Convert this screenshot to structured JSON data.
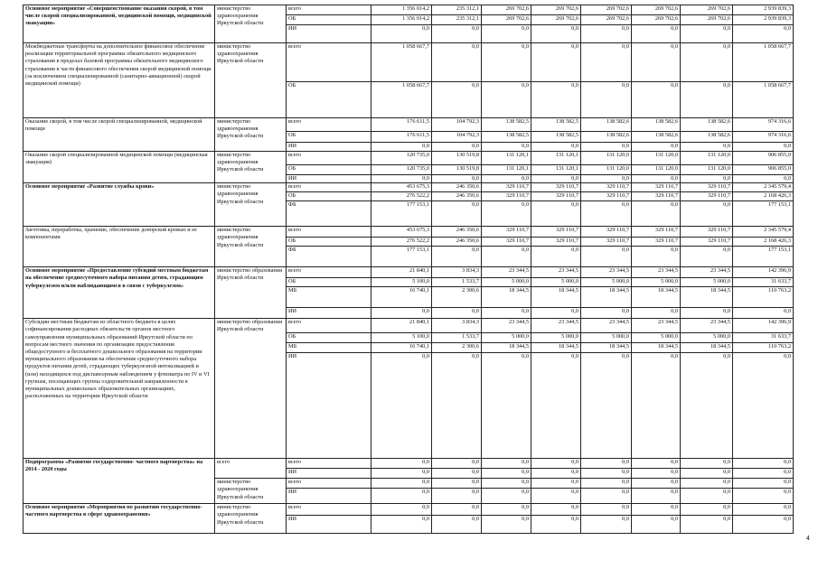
{
  "page_number": "4",
  "blocks": [
    {
      "name": "Основное мероприятие «Совершенствование оказания скорой, в том числе скорой специализированной, медицинской помощи, медицинской эвакуации»",
      "bold": true,
      "groups": [
        {
          "responsible": "министерство здравоохранения Иркутской области",
          "rows": [
            {
              "source": "всего",
              "values": [
                "1 356 014,2",
                "235 312,1",
                "269 702,6",
                "269 702,6",
                "269 702,6",
                "269 702,6",
                "269 702,6",
                "2 939 839,3"
              ]
            },
            {
              "source": "ОБ",
              "values": [
                "1 356 014,2",
                "235 312,1",
                "269 702,6",
                "269 702,6",
                "269 702,6",
                "269 702,6",
                "269 702,6",
                "2 939 839,3"
              ]
            },
            {
              "source": "ИИ",
              "values": [
                "0,0",
                "0,0",
                "0,0",
                "0,0",
                "0,0",
                "0,0",
                "0,0",
                "0,0"
              ]
            }
          ]
        }
      ]
    },
    {
      "name": "Межбюджетные трансферты на дополнительное финансовое обеспечение реализации территориальной программы обязательного медицинского страхования в пределах базовой программы обязательного медицинского страхования в части финансового обеспечения скорой медицинской помощи (за исключением специализированной (санитарно-авиационной) скорой медицинской помощи)",
      "bold": false,
      "groups": [
        {
          "responsible": "министерство здравоохранения Иркутской области",
          "rows": [
            {
              "source": "всего",
              "values": [
                "1 058 667,7",
                "0,0",
                "0,0",
                "0,0",
                "0,0",
                "0,0",
                "0,0",
                "1 058 667,7"
              ]
            },
            {
              "source": "ОБ",
              "values": [
                "1 058 667,7",
                "0,0",
                "0,0",
                "0,0",
                "0,0",
                "0,0",
                "0,0",
                "1 058 667,7"
              ]
            }
          ]
        }
      ]
    },
    {
      "name": "Оказание скорой, в том числе скорой специализированной, медицинской помощи",
      "bold": false,
      "groups": [
        {
          "responsible": "министерство здравоохранения Иркутской области",
          "rows": [
            {
              "source": "всего",
              "values": [
                "176 611,5",
                "104 792,3",
                "138 582,5",
                "138 582,5",
                "138 582,6",
                "138 582,6",
                "138 582,6",
                "974 316,6"
              ]
            },
            {
              "source": "ОБ",
              "values": [
                "176 611,5",
                "104 792,3",
                "138 582,5",
                "138 582,5",
                "138 582,6",
                "138 582,6",
                "138 582,6",
                "974 316,6"
              ]
            },
            {
              "source": "ИИ",
              "values": [
                "0,0",
                "0,0",
                "0,0",
                "0,0",
                "0,0",
                "0,0",
                "0,0",
                "0,0"
              ]
            }
          ]
        }
      ]
    },
    {
      "name": "Оказание скорой специализированной медицинской помощи (медицинская эвакуация)",
      "bold": false,
      "groups": [
        {
          "responsible": "министерство здравоохранения Иркутской области",
          "rows": [
            {
              "source": "всего",
              "values": [
                "120 735,0",
                "130 519,8",
                "131 120,1",
                "131 120,1",
                "131 120,0",
                "131 120,0",
                "131 120,0",
                "906 855,0"
              ]
            },
            {
              "source": "ОБ",
              "values": [
                "120 735,0",
                "130 519,8",
                "131 120,1",
                "131 120,1",
                "131 120,0",
                "131 120,0",
                "131 120,0",
                "906 855,0"
              ]
            },
            {
              "source": "ИИ",
              "values": [
                "0,0",
                "0,0",
                "0,0",
                "0,0",
                "0,0",
                "0,0",
                "0,0",
                "0,0"
              ]
            }
          ]
        }
      ]
    },
    {
      "name": "Основное мероприятие «Развитие службы крови»",
      "bold": true,
      "groups": [
        {
          "responsible": "министерство здравоохранения Иркутской области",
          "rows": [
            {
              "source": "всего",
              "values": [
                "453 675,3",
                "246 350,6",
                "329 110,7",
                "329 110,7",
                "329 110,7",
                "329 110,7",
                "329 110,7",
                "2 345 579,4"
              ]
            },
            {
              "source": "ОБ",
              "values": [
                "276 522,2",
                "246 350,6",
                "329 110,7",
                "329 110,7",
                "329 110,7",
                "329 110,7",
                "329 110,7",
                "2 168 426,3"
              ]
            },
            {
              "source": "ФБ",
              "values": [
                "177 153,1",
                "0,0",
                "0,0",
                "0,0",
                "0,0",
                "0,0",
                "0,0",
                "177 153,1"
              ]
            }
          ]
        }
      ]
    },
    {
      "name": "Заготовка, переработка, хранение, обеспечение донорской кровью и ее компонентами",
      "bold": false,
      "groups": [
        {
          "responsible": "министерство здравоохранения Иркутской области",
          "rows": [
            {
              "source": "всего",
              "values": [
                "453 675,3",
                "246 350,6",
                "329 110,7",
                "329 110,7",
                "329 110,7",
                "329 110,7",
                "329 110,7",
                "2 345 579,4"
              ]
            },
            {
              "source": "ОБ",
              "values": [
                "276 522,2",
                "246 350,6",
                "329 110,7",
                "329 110,7",
                "329 110,7",
                "329 110,7",
                "329 110,7",
                "2 168 426,3"
              ]
            },
            {
              "source": "ФБ",
              "values": [
                "177 153,1",
                "0,0",
                "0,0",
                "0,0",
                "0,0",
                "0,0",
                "0,0",
                "177 153,1"
              ]
            }
          ]
        }
      ]
    },
    {
      "name": "Основное мероприятие «Предоставление субсидий местным бюджетам на обеспечение среднесуточного набора питания детям, страдающим туберкулезом и/или наблюдающимся в связи с туберкулезом»",
      "bold": true,
      "groups": [
        {
          "responsible": "министерство образования Иркутской области",
          "rows": [
            {
              "source": "всего",
              "values": [
                "21 840,1",
                "3 834,3",
                "23 344,5",
                "23 344,5",
                "23 344,5",
                "23 344,5",
                "23 344,5",
                "142 396,9"
              ]
            },
            {
              "source": "ОБ",
              "values": [
                "5 100,0",
                "1 533,7",
                "5 000,0",
                "5 000,0",
                "5 000,0",
                "5 000,0",
                "5 000,0",
                "31 633,7"
              ]
            },
            {
              "source": "МБ",
              "values": [
                "16 740,1",
                "2 300,6",
                "18 344,5",
                "18 344,5",
                "18 344,5",
                "18 344,5",
                "18 344,5",
                "110 763,2"
              ]
            },
            {
              "source": "ИИ",
              "values": [
                "0,0",
                "0,0",
                "0,0",
                "0,0",
                "0,0",
                "0,0",
                "0,0",
                "0,0"
              ]
            }
          ]
        }
      ]
    },
    {
      "name": "Субсидии местным бюджетам из областного бюджета в целях софинансирования расходных обязательств органов местного самоуправления муниципальных образований Иркутской области по вопросам местного значения по организации предоставления общедоступного и бесплатного дошкольного образования на территории муниципального образования на обеспечение среднесуточного набора продуктов питания детей, страдающих туберкулезной интоксикацией и (или) находящихся под диспансерным наблюдением у фтизиатра по IV и VI группам, посещающих группы оздоровительной направленности в муниципальных дошкольных образовательных организациях, расположенных на территории Иркутской области",
      "bold": false,
      "groups": [
        {
          "responsible": "министерство образования Иркутской области",
          "rows": [
            {
              "source": "всего",
              "values": [
                "21 840,1",
                "3 834,3",
                "23 344,5",
                "23 344,5",
                "23 344,5",
                "23 344,5",
                "23 344,5",
                "142 396,9"
              ]
            },
            {
              "source": "ОБ",
              "values": [
                "5 100,0",
                "1 533,7",
                "5 000,0",
                "5 000,0",
                "5 000,0",
                "5 000,0",
                "5 000,0",
                "31 633,7"
              ]
            },
            {
              "source": "МБ",
              "values": [
                "16 740,1",
                "2 300,6",
                "18 344,5",
                "18 344,5",
                "18 344,5",
                "18 344,5",
                "18 344,5",
                "110 763,2"
              ]
            },
            {
              "source": "ИИ",
              "values": [
                "0,0",
                "0,0",
                "0,0",
                "0,0",
                "0,0",
                "0,0",
                "0,0",
                "0,0"
              ]
            }
          ]
        }
      ]
    },
    {
      "name": "Подпрограмма «Развитие государственно- частного партнерства» на 2014 - 2020 годы",
      "bold": true,
      "groups": [
        {
          "responsible": "всего",
          "rows": [
            {
              "source": "всего",
              "values": [
                "0,0",
                "0,0",
                "0,0",
                "0,0",
                "0,0",
                "0,0",
                "0,0",
                "0,0"
              ]
            },
            {
              "source": "ИИ",
              "values": [
                "0,0",
                "0,0",
                "0,0",
                "0,0",
                "0,0",
                "0,0",
                "0,0",
                "0,0"
              ]
            }
          ]
        },
        {
          "responsible": "министерство здравоохранения Иркутской области",
          "rows": [
            {
              "source": "всего",
              "values": [
                "0,0",
                "0,0",
                "0,0",
                "0,0",
                "0,0",
                "0,0",
                "0,0",
                "0,0"
              ]
            },
            {
              "source": "ИИ",
              "values": [
                "0,0",
                "0,0",
                "0,0",
                "0,0",
                "0,0",
                "0,0",
                "0,0",
                "0,0"
              ]
            }
          ]
        }
      ]
    },
    {
      "name": "Основное мероприятие «Мероприятия по развитию государственно-частного партнерства в сфере здравоохранения»",
      "bold": true,
      "groups": [
        {
          "responsible": "министерство здравоохранения Иркутской области",
          "rows": [
            {
              "source": "всего",
              "values": [
                "0,0",
                "0,0",
                "0,0",
                "0,0",
                "0,0",
                "0,0",
                "0,0",
                "0,0"
              ]
            },
            {
              "source": "ИИ",
              "values": [
                "0,0",
                "0,0",
                "0,0",
                "0,0",
                "0,0",
                "0,0",
                "0,0",
                "0,0"
              ]
            }
          ]
        }
      ]
    }
  ]
}
